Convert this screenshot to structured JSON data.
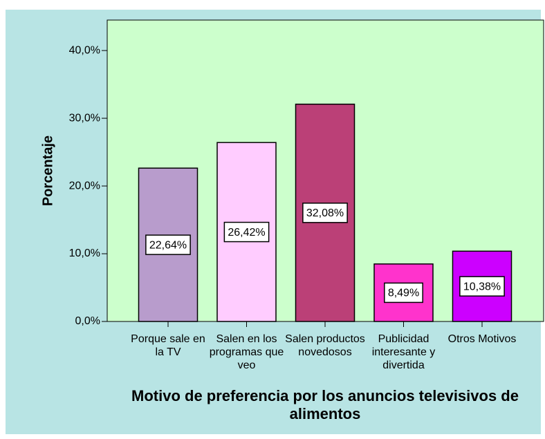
{
  "chart_data": {
    "type": "bar",
    "xlabel": "Motivo de preferencia por los anuncios televisivos de alimentos",
    "ylabel": "Porcentaje",
    "categories": [
      "Porque sale en la TV",
      "Salen en los programas que veo",
      "Salen productos novedosos",
      "Publicidad interesante y divertida",
      "Otros Motivos"
    ],
    "values": [
      22.64,
      26.42,
      32.08,
      8.49,
      10.38
    ],
    "value_labels": [
      "22,64%",
      "26,42%",
      "32,08%",
      "8,49%",
      "10,38%"
    ],
    "colors": [
      "#b89ccc",
      "#ffccff",
      "#bb4077",
      "#ff33cc",
      "#cc00ff"
    ],
    "ylim": [
      0,
      44.5
    ],
    "yticks": [
      {
        "value": 0,
        "label": "0,0%"
      },
      {
        "value": 10,
        "label": "10,0%"
      },
      {
        "value": 20,
        "label": "20,0%"
      },
      {
        "value": 30,
        "label": "30,0%"
      },
      {
        "value": 40,
        "label": "40,0%"
      }
    ]
  }
}
